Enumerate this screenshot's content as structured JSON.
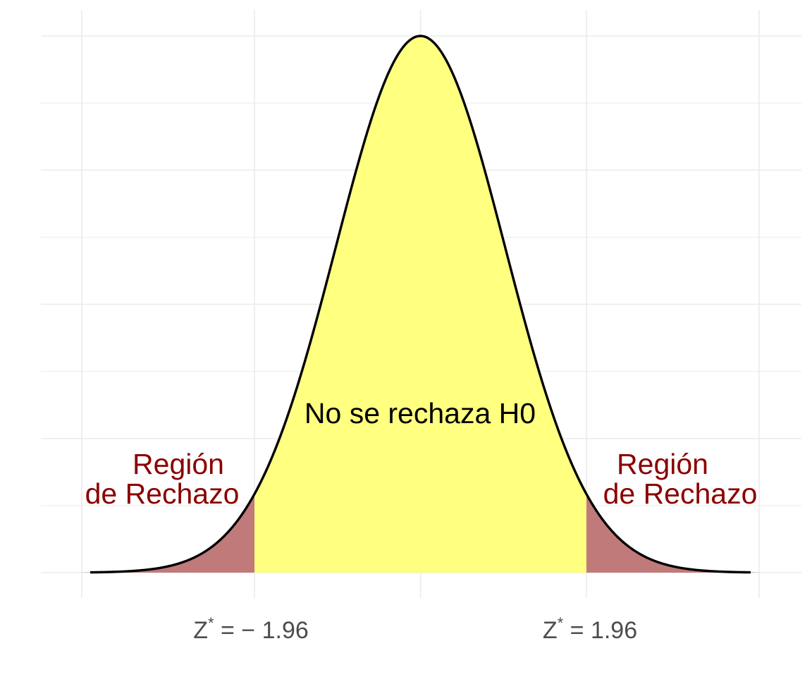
{
  "chart_data": {
    "type": "area",
    "title": "",
    "xlabel": "",
    "ylabel": "",
    "distribution": "normal",
    "mean": 0,
    "sd": 1,
    "xlim": [
      -4,
      4
    ],
    "ylim": [
      0,
      0.4
    ],
    "grid": true,
    "regions": [
      {
        "name": "rechazo-izquierda",
        "from": -4,
        "to": -1.96,
        "color": "#c17a7a"
      },
      {
        "name": "no-rechazo",
        "from": -1.96,
        "to": 1.96,
        "color": "#ffff80"
      },
      {
        "name": "rechazo-derecha",
        "from": 1.96,
        "to": 4,
        "color": "#c17a7a"
      }
    ],
    "critical_values": [
      -1.96,
      1.96
    ],
    "tick_labels": [
      {
        "x": -1.96,
        "main": "Z",
        "sup": "*",
        "rest": " = − 1.96"
      },
      {
        "x": 1.96,
        "main": "Z",
        "sup": "*",
        "rest": " = 1.96"
      }
    ],
    "annotations": [
      {
        "name": "region-label-left",
        "lines": [
          "Región",
          "de Rechazo"
        ],
        "color": "#8b0000"
      },
      {
        "name": "region-label-right",
        "lines": [
          "Región",
          "de Rechazo"
        ],
        "color": "#8b0000"
      },
      {
        "name": "center-label",
        "text": "No se rechaza H0",
        "color": "#000000"
      }
    ]
  }
}
